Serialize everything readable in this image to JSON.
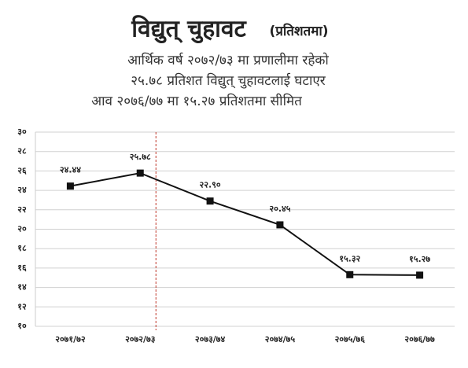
{
  "chart_data": {
    "type": "line",
    "title": "विद्युत् चुहावट",
    "title_note": "(प्रतिशतमा)",
    "subtitle": [
      "आर्थिक वर्ष २०७२/७३ मा प्रणालीमा रहेको",
      "२५.७८ प्रतिशत विद्युत् चुहावटलाई घटाएर",
      "आव २०७६/७७ मा १५.२७ प्रतिशतमा सीमित"
    ],
    "categories": [
      "२०७१/७२",
      "२०७२/७३",
      "२०७३/७४",
      "२०७४/७५",
      "२०७५/७६",
      "२०७६/७७"
    ],
    "values": [
      24.44,
      25.78,
      22.9,
      20.45,
      15.32,
      15.27
    ],
    "value_labels": [
      "२४.४४",
      "२५.७८",
      "२२.९०",
      "२०.४५",
      "१५.३२",
      "१५.२७"
    ],
    "color": "#111111",
    "ylim": [
      10,
      30
    ],
    "yticks": [
      {
        "value": 10,
        "label": "१०"
      },
      {
        "value": 12,
        "label": "१२"
      },
      {
        "value": 14,
        "label": "१४"
      },
      {
        "value": 16,
        "label": "१६"
      },
      {
        "value": 18,
        "label": "१८"
      },
      {
        "value": 20,
        "label": "२०"
      },
      {
        "value": 22,
        "label": "२२"
      },
      {
        "value": 24,
        "label": "२४"
      },
      {
        "value": 26,
        "label": "२६"
      },
      {
        "value": 28,
        "label": "२८"
      },
      {
        "value": 30,
        "label": "३०"
      }
    ],
    "grid": true,
    "reference_line": {
      "category_index": 1,
      "color": "#c0392b",
      "style": "dashed"
    }
  }
}
